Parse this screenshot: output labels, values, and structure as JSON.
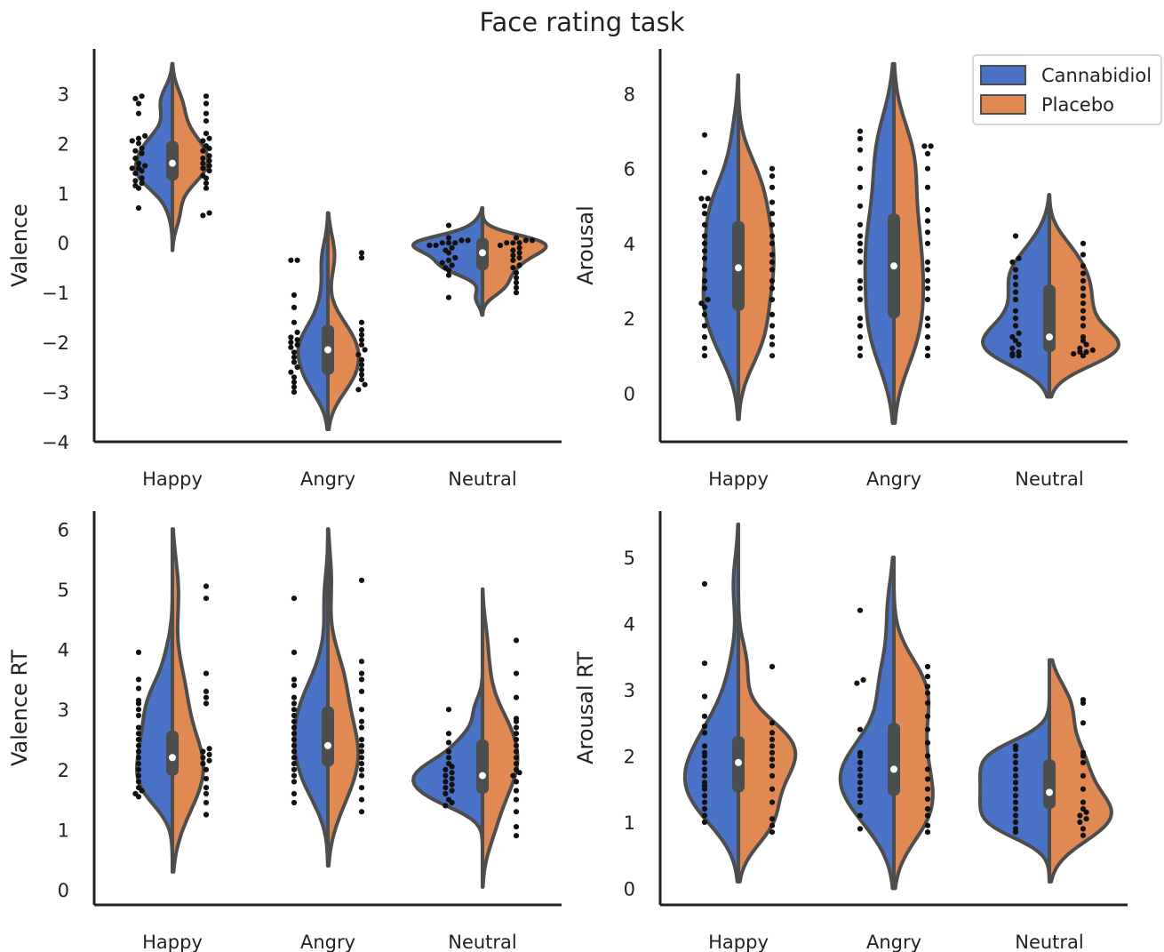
{
  "figure_title": "Face rating task",
  "chart_data": [
    {
      "type": "violin",
      "ylabel": "Valence",
      "ylim": [
        -4,
        3.9
      ],
      "yticks": [
        -4,
        -3,
        -2,
        -1,
        0,
        1,
        2,
        3
      ],
      "ytick_labels": [
        "−4",
        "−3",
        "−2",
        "−1",
        "0",
        "1",
        "2",
        "3"
      ],
      "categories": [
        "Happy",
        "Angry",
        "Neutral"
      ],
      "legend": null,
      "series": [
        {
          "name": "Cannabidiol",
          "color": "#4a72c6",
          "groups": [
            {
              "min": -0.15,
              "max": 3.6,
              "median": 1.6,
              "q1": 1.25,
              "q3": 2.05,
              "points": [
                0.7,
                1.1,
                1.15,
                1.2,
                1.25,
                1.3,
                1.4,
                1.45,
                1.5,
                1.5,
                1.55,
                1.6,
                1.7,
                1.8,
                1.85,
                1.9,
                2.0,
                2.05,
                2.1,
                2.15,
                2.6,
                2.8,
                2.9,
                2.95
              ]
            },
            {
              "min": -3.75,
              "max": 0.6,
              "median": -2.15,
              "q1": -2.65,
              "q3": -1.65,
              "points": [
                -3.0,
                -2.9,
                -2.8,
                -2.7,
                -2.6,
                -2.5,
                -2.4,
                -2.3,
                -2.2,
                -2.1,
                -2.05,
                -2.0,
                -1.95,
                -1.9,
                -1.8,
                -1.6,
                -1.3,
                -1.05,
                -0.35,
                -0.35
              ]
            },
            {
              "min": -1.45,
              "max": 0.7,
              "median": -0.2,
              "q1": -0.55,
              "q3": 0.1,
              "points": [
                -1.1,
                -0.65,
                -0.55,
                -0.5,
                -0.45,
                -0.4,
                -0.35,
                -0.3,
                -0.2,
                -0.15,
                -0.1,
                -0.05,
                -0.05,
                0.0,
                0.0,
                0.0,
                0.05,
                0.05,
                0.1,
                0.35
              ]
            }
          ]
        },
        {
          "name": "Placebo",
          "color": "#e08953",
          "groups": [
            {
              "min": -0.15,
              "max": 3.6,
              "median": 1.6,
              "q1": 1.25,
              "q3": 2.05,
              "points": [
                0.55,
                0.6,
                1.1,
                1.2,
                1.3,
                1.35,
                1.45,
                1.5,
                1.55,
                1.6,
                1.65,
                1.7,
                1.75,
                1.85,
                1.9,
                1.95,
                2.05,
                2.1,
                2.2,
                2.45,
                2.6,
                2.8,
                2.95
              ]
            },
            {
              "min": -3.75,
              "max": 0.6,
              "median": -2.15,
              "q1": -2.65,
              "q3": -1.65,
              "points": [
                -2.95,
                -2.85,
                -2.75,
                -2.65,
                -2.55,
                -2.45,
                -2.35,
                -2.25,
                -2.15,
                -2.05,
                -1.95,
                -1.85,
                -1.75,
                -1.6,
                -0.3,
                -0.2
              ]
            },
            {
              "min": -1.45,
              "max": 0.7,
              "median": -0.2,
              "q1": -0.55,
              "q3": 0.1,
              "points": [
                -1.0,
                -0.9,
                -0.8,
                -0.7,
                -0.6,
                -0.5,
                -0.45,
                -0.35,
                -0.3,
                -0.25,
                -0.2,
                -0.15,
                -0.1,
                -0.05,
                0.0,
                0.0,
                0.0,
                0.05,
                0.05,
                0.1
              ]
            }
          ]
        }
      ]
    },
    {
      "type": "violin",
      "ylabel": "Arousal",
      "ylim": [
        -1.3,
        9.2
      ],
      "yticks": [
        0,
        2,
        4,
        6,
        8
      ],
      "ytick_labels": [
        "0",
        "2",
        "4",
        "6",
        "8"
      ],
      "categories": [
        "Happy",
        "Angry",
        "Neutral"
      ],
      "legend": {
        "position": "top-right",
        "entries": [
          "Cannabidiol",
          "Placebo"
        ]
      },
      "series": [
        {
          "name": "Cannabidiol",
          "color": "#4a72c6",
          "groups": [
            {
              "min": -0.7,
              "max": 8.5,
              "median": 3.35,
              "q1": 2.2,
              "q3": 4.6,
              "points": [
                1.0,
                1.2,
                1.5,
                1.8,
                2.1,
                2.3,
                2.4,
                2.5,
                2.8,
                3.0,
                3.3,
                3.6,
                3.8,
                4.0,
                4.2,
                4.5,
                4.8,
                5.0,
                5.2,
                5.2,
                5.9,
                6.9
              ]
            },
            {
              "min": -0.8,
              "max": 8.8,
              "median": 3.4,
              "q1": 2.0,
              "q3": 4.8,
              "points": [
                1.0,
                1.2,
                1.5,
                1.8,
                2.0,
                2.5,
                2.8,
                3.0,
                3.5,
                3.8,
                4.0,
                4.2,
                4.5,
                5.0,
                5.5,
                6.0,
                6.5,
                6.8,
                7.0
              ]
            },
            {
              "min": -0.1,
              "max": 5.3,
              "median": 1.5,
              "q1": 1.1,
              "q3": 2.9,
              "points": [
                1.0,
                1.0,
                1.05,
                1.1,
                1.2,
                1.3,
                1.4,
                1.5,
                1.6,
                1.8,
                2.0,
                2.2,
                2.5,
                2.7,
                2.9,
                3.1,
                3.3,
                3.5,
                3.6,
                4.2
              ]
            }
          ]
        },
        {
          "name": "Placebo",
          "color": "#e08953",
          "groups": [
            {
              "min": -0.7,
              "max": 8.5,
              "median": 3.35,
              "q1": 2.2,
              "q3": 4.6,
              "points": [
                1.0,
                1.3,
                1.5,
                1.8,
                2.1,
                2.5,
                2.8,
                3.0,
                3.3,
                3.5,
                3.7,
                4.0,
                4.2,
                4.5,
                4.8,
                5.1,
                5.5,
                5.8,
                6.0
              ]
            },
            {
              "min": -0.8,
              "max": 8.8,
              "median": 3.4,
              "q1": 2.0,
              "q3": 4.8,
              "points": [
                1.0,
                1.2,
                1.5,
                1.8,
                2.0,
                2.5,
                2.8,
                3.0,
                3.3,
                3.5,
                4.0,
                4.3,
                4.6,
                4.9,
                5.5,
                6.0,
                6.4,
                6.6,
                6.6
              ]
            },
            {
              "min": -0.1,
              "max": 5.3,
              "median": 1.5,
              "q1": 1.1,
              "q3": 2.9,
              "points": [
                1.0,
                1.05,
                1.1,
                1.1,
                1.15,
                1.2,
                1.3,
                1.4,
                1.5,
                1.8,
                2.0,
                2.2,
                2.4,
                2.6,
                2.8,
                3.0,
                3.2,
                3.4,
                3.7,
                4.0
              ]
            }
          ]
        }
      ]
    },
    {
      "type": "violin",
      "ylabel": "Valence RT",
      "ylim": [
        -0.25,
        6.3
      ],
      "yticks": [
        0,
        1,
        2,
        3,
        4,
        5,
        6
      ],
      "ytick_labels": [
        "0",
        "1",
        "2",
        "3",
        "4",
        "5",
        "6"
      ],
      "categories": [
        "Happy",
        "Angry",
        "Neutral"
      ],
      "legend": null,
      "series": [
        {
          "name": "Cannabidiol",
          "color": "#4a72c6",
          "groups": [
            {
              "min": 0.3,
              "max": 6.0,
              "median": 2.2,
              "q1": 1.9,
              "q3": 2.65,
              "points": [
                1.55,
                1.6,
                1.65,
                1.7,
                1.8,
                1.9,
                2.0,
                2.1,
                2.2,
                2.3,
                2.4,
                2.5,
                2.6,
                2.7,
                2.9,
                3.0,
                3.1,
                3.15,
                3.35,
                3.5,
                3.95
              ]
            },
            {
              "min": 0.4,
              "max": 6.0,
              "median": 2.4,
              "q1": 2.05,
              "q3": 3.05,
              "points": [
                1.45,
                1.6,
                1.8,
                1.9,
                2.0,
                2.1,
                2.2,
                2.3,
                2.4,
                2.5,
                2.6,
                2.7,
                2.8,
                2.9,
                3.0,
                3.1,
                3.2,
                3.4,
                3.5,
                3.95,
                4.85
              ]
            },
            {
              "min": 0.05,
              "max": 5.0,
              "median": 1.9,
              "q1": 1.6,
              "q3": 2.5,
              "points": [
                1.4,
                1.45,
                1.5,
                1.6,
                1.65,
                1.7,
                1.75,
                1.8,
                1.85,
                1.9,
                1.95,
                2.0,
                2.05,
                2.1,
                2.2,
                2.3,
                2.45,
                2.6,
                3.0
              ]
            }
          ]
        },
        {
          "name": "Placebo",
          "color": "#e08953",
          "groups": [
            {
              "min": 0.3,
              "max": 6.0,
              "median": 2.2,
              "q1": 1.9,
              "q3": 2.65,
              "points": [
                1.25,
                1.45,
                1.6,
                1.7,
                1.85,
                2.0,
                2.1,
                2.15,
                2.2,
                2.25,
                2.3,
                2.35,
                3.1,
                3.2,
                3.3,
                3.6,
                4.85,
                5.05
              ]
            },
            {
              "min": 0.4,
              "max": 6.0,
              "median": 2.4,
              "q1": 2.05,
              "q3": 3.05,
              "points": [
                1.3,
                1.5,
                1.7,
                1.9,
                2.0,
                2.1,
                2.2,
                2.3,
                2.4,
                2.5,
                2.7,
                2.8,
                3.0,
                3.3,
                3.5,
                3.6,
                3.8,
                5.15
              ]
            },
            {
              "min": 0.05,
              "max": 5.0,
              "median": 1.9,
              "q1": 1.6,
              "q3": 2.5,
              "points": [
                0.9,
                1.05,
                1.3,
                1.5,
                1.65,
                1.8,
                1.9,
                1.95,
                2.0,
                2.1,
                2.2,
                2.3,
                2.4,
                2.5,
                2.6,
                2.7,
                2.8,
                2.85,
                3.2,
                3.6,
                4.15
              ]
            }
          ]
        }
      ]
    },
    {
      "type": "violin",
      "ylabel": "Arousal RT",
      "ylim": [
        -0.25,
        5.7
      ],
      "yticks": [
        0,
        1,
        2,
        3,
        4,
        5
      ],
      "ytick_labels": [
        "0",
        "1",
        "2",
        "3",
        "4",
        "5"
      ],
      "categories": [
        "Happy",
        "Angry",
        "Neutral"
      ],
      "legend": null,
      "series": [
        {
          "name": "Cannabidiol",
          "color": "#4a72c6",
          "groups": [
            {
              "min": 0.1,
              "max": 5.5,
              "median": 1.9,
              "q1": 1.45,
              "q3": 2.3,
              "points": [
                1.0,
                1.1,
                1.2,
                1.3,
                1.4,
                1.5,
                1.55,
                1.6,
                1.7,
                1.8,
                1.9,
                2.0,
                2.05,
                2.15,
                2.35,
                2.45,
                2.6,
                2.9,
                3.4,
                4.6
              ]
            },
            {
              "min": 0.0,
              "max": 5.0,
              "median": 1.8,
              "q1": 1.4,
              "q3": 2.5,
              "points": [
                0.9,
                1.1,
                1.3,
                1.4,
                1.5,
                1.6,
                1.7,
                1.8,
                1.9,
                2.0,
                2.05,
                2.4,
                3.1,
                3.15,
                4.2
              ]
            },
            {
              "min": 0.1,
              "max": 3.45,
              "median": 1.45,
              "q1": 1.2,
              "q3": 1.95,
              "points": [
                0.85,
                0.9,
                1.0,
                1.1,
                1.2,
                1.3,
                1.4,
                1.5,
                1.6,
                1.7,
                1.8,
                1.9,
                2.0,
                2.1,
                2.15
              ]
            }
          ]
        },
        {
          "name": "Placebo",
          "color": "#e08953",
          "groups": [
            {
              "min": 0.1,
              "max": 5.5,
              "median": 1.9,
              "q1": 1.45,
              "q3": 2.3,
              "points": [
                0.85,
                0.95,
                1.05,
                1.3,
                1.5,
                1.7,
                1.85,
                1.95,
                2.05,
                2.15,
                2.25,
                2.35,
                2.5,
                3.35
              ]
            },
            {
              "min": 0.0,
              "max": 5.0,
              "median": 1.8,
              "q1": 1.4,
              "q3": 2.5,
              "points": [
                0.85,
                0.95,
                1.1,
                1.2,
                1.35,
                1.5,
                1.65,
                1.8,
                2.0,
                2.2,
                2.4,
                2.6,
                2.8,
                2.95,
                3.05,
                3.2,
                3.35
              ]
            },
            {
              "min": 0.1,
              "max": 3.45,
              "median": 1.45,
              "q1": 1.2,
              "q3": 1.95,
              "points": [
                0.8,
                0.9,
                1.0,
                1.05,
                1.1,
                1.15,
                1.2,
                1.3,
                1.5,
                1.7,
                1.9,
                2.0,
                2.05,
                2.5,
                2.8,
                2.85
              ]
            }
          ]
        }
      ]
    }
  ]
}
